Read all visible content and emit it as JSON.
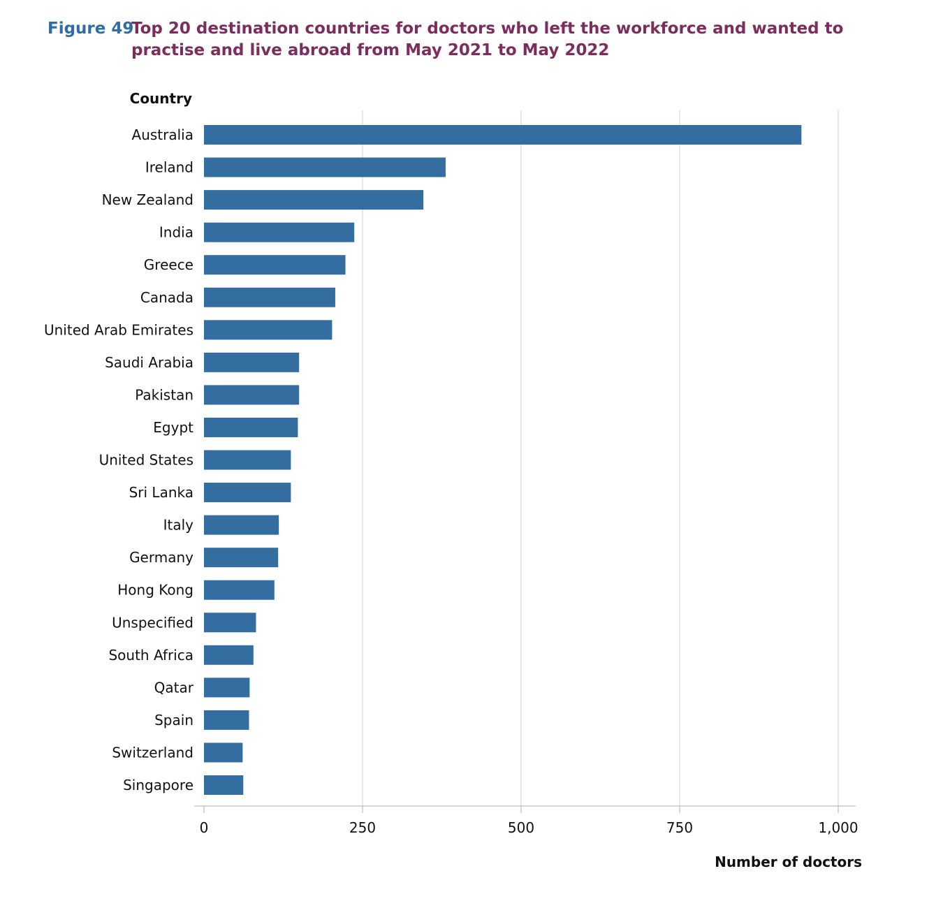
{
  "figure": {
    "label": "Figure 49:",
    "title": "Top 20 destination countries for doctors who left the workforce and wanted to practise and live abroad from May 2021 to May 2022"
  },
  "colors": {
    "bar": "#346ea0",
    "grid": "#d0d0d0",
    "label": "#2f6da3",
    "title": "#7b2d5f"
  },
  "chart_data": {
    "type": "bar",
    "orientation": "horizontal",
    "title": "Top 20 destination countries for doctors who left the workforce and wanted to practise and live abroad from May 2021 to May 2022",
    "ylabel": "Country",
    "xlabel": "Number of doctors",
    "categories": [
      "Australia",
      "Ireland",
      "New Zealand",
      "India",
      "Greece",
      "Canada",
      "United Arab Emirates",
      "Saudi Arabia",
      "Pakistan",
      "Egypt",
      "United States",
      "Sri Lanka",
      "Italy",
      "Germany",
      "Hong Kong",
      "Unspecified",
      "South Africa",
      "Qatar",
      "Spain",
      "Switzerland",
      "Singapore"
    ],
    "values": [
      942,
      381,
      346,
      237,
      223,
      207,
      202,
      150,
      150,
      148,
      137,
      137,
      118,
      117,
      111,
      82,
      78,
      72,
      71,
      61,
      62
    ],
    "xlim": [
      0,
      1000
    ],
    "xticks": [
      0,
      250,
      500,
      750,
      1000
    ],
    "xtick_labels": [
      "0",
      "250",
      "500",
      "750",
      "1,000"
    ],
    "grid": "vertical",
    "legend": "none"
  }
}
